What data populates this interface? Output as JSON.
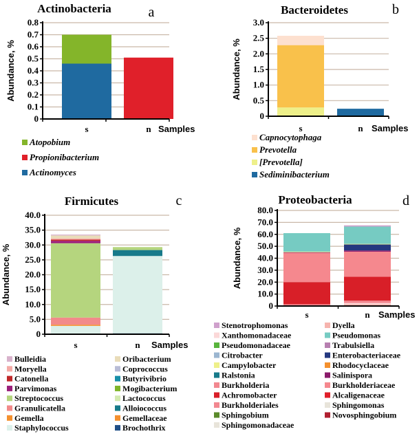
{
  "chart_data": [
    {
      "type": "bar",
      "stacked": true,
      "title": "Actinobacteria",
      "panel_letter": "a",
      "xlabel": "Samples",
      "ylabel": "Abundance, %",
      "ylim": [
        0,
        0.8
      ],
      "yticks": [
        "0",
        "0.1",
        "0.2",
        "0.3",
        "0.4",
        "0.5",
        "0.6",
        "0.7",
        "0.8"
      ],
      "grid": true,
      "categories": [
        "s",
        "n"
      ],
      "series": [
        {
          "name": "Actinomyces",
          "color": "#1f6aa0",
          "values": [
            0.46,
            0
          ]
        },
        {
          "name": "Propionibacterium",
          "color": "#e0202a",
          "values": [
            0,
            0.51
          ]
        },
        {
          "name": "Atopobium",
          "color": "#84b52a",
          "values": [
            0.24,
            0
          ]
        }
      ],
      "legend_order": [
        "Atopobium",
        "Propionibacterium",
        "Actinomyces"
      ],
      "legend_italic": true,
      "legend_placement": "bottom"
    },
    {
      "type": "bar",
      "stacked": true,
      "title": "Bacteroidetes",
      "panel_letter": "b",
      "xlabel": "Samples",
      "ylabel": "Abundance, %",
      "ylim": [
        0,
        3.0
      ],
      "yticks": [
        "0",
        "0.5",
        "1.0",
        "1.5",
        "2.0",
        "2.5",
        "3.0"
      ],
      "grid": true,
      "categories": [
        "s",
        "n"
      ],
      "series": [
        {
          "name": "Sediminibacterium",
          "color": "#1f6aa0",
          "values": [
            0,
            0.24
          ]
        },
        {
          "name": "[Prevotella]",
          "color": "#eef08a",
          "values": [
            0.28,
            0
          ]
        },
        {
          "name": "Prevotella",
          "color": "#f9c14b",
          "values": [
            2.0,
            0
          ]
        },
        {
          "name": "Capnocytophaga",
          "color": "#fde0cf",
          "values": [
            0.3,
            0
          ]
        }
      ],
      "legend_order": [
        "Capnocytophaga",
        "Prevotella",
        "[Prevotella]",
        "Sediminibacterium"
      ],
      "legend_italic": true,
      "legend_placement": "bottom"
    },
    {
      "type": "bar",
      "stacked": true,
      "title": "Firmicutes",
      "panel_letter": "c",
      "xlabel": "Samples",
      "ylabel": "Abundance, %",
      "ylim": [
        0,
        40
      ],
      "yticks": [
        "0",
        "5.0",
        "10.0",
        "15.0",
        "20.0",
        "25.0",
        "30.0",
        "35.0",
        "40.0"
      ],
      "grid": true,
      "categories": [
        "s",
        "n"
      ],
      "series": [
        {
          "name": "Brochothrix",
          "color": "#1f4e86",
          "values": [
            0,
            0.3
          ]
        },
        {
          "name": "Staphylococcus",
          "color": "#dcf0ea",
          "values": [
            2.8,
            26.0
          ]
        },
        {
          "name": "Gemellaceae",
          "color": "#f4902e",
          "values": [
            0,
            0
          ]
        },
        {
          "name": "Gemella",
          "color": "#f4902e",
          "values": [
            0.4,
            0
          ]
        },
        {
          "name": "Alloiococcus",
          "color": "#177a8a",
          "values": [
            0,
            2.0
          ]
        },
        {
          "name": "Granulicatella",
          "color": "#f28a8a",
          "values": [
            2.4,
            0
          ]
        },
        {
          "name": "Lactococcus",
          "color": "#d3eab0",
          "values": [
            0,
            0
          ]
        },
        {
          "name": "Streptococcus",
          "color": "#b5d57e",
          "values": [
            25.0,
            1.0
          ]
        },
        {
          "name": "Mogibacterium",
          "color": "#7fb52a",
          "values": [
            0,
            0
          ]
        },
        {
          "name": "Parvimonas",
          "color": "#9b1f7a",
          "values": [
            0.8,
            0
          ]
        },
        {
          "name": "Butyrivibrio",
          "color": "#178fa8",
          "values": [
            0,
            0
          ]
        },
        {
          "name": "Catonella",
          "color": "#c0282a",
          "values": [
            0.4,
            0
          ]
        },
        {
          "name": "Coprococcus",
          "color": "#b8bcd6",
          "values": [
            0,
            0
          ]
        },
        {
          "name": "Moryella",
          "color": "#f4aaa6",
          "values": [
            0.4,
            0
          ]
        },
        {
          "name": "Oribacterium",
          "color": "#e9dcb9",
          "values": [
            1.0,
            0
          ]
        },
        {
          "name": "Bulleidia",
          "color": "#d8b2cc",
          "values": [
            0.3,
            0
          ]
        }
      ],
      "legend_order": [
        "Bulleidia",
        "Moryella",
        "Catonella",
        "Parvimonas",
        "Streptococcus",
        "Granulicatella",
        "Gemella",
        "Staphylococcus",
        "Oribacterium",
        "Coprococcus",
        "Butyrivibrio",
        "Mogibacterium",
        "Lactococcus",
        "Alloiococcus",
        "Gemellaceae",
        "Brochothrix"
      ],
      "legend_italic": false,
      "legend_placement": "bottom"
    },
    {
      "type": "bar",
      "stacked": true,
      "title": "Proteobacteria",
      "panel_letter": "d",
      "xlabel": "Samples",
      "ylabel": "Abundance, %",
      "ylim": [
        0,
        80
      ],
      "yticks": [
        "0",
        "10.0",
        "20.0",
        "30.0",
        "40.0",
        "50.0",
        "60.0",
        "70.0",
        "80.0"
      ],
      "grid": true,
      "categories": [
        "s",
        "n"
      ],
      "series": [
        {
          "name": "Dyella",
          "color": "#f6b4ae",
          "values": [
            0.5,
            1.5
          ]
        },
        {
          "name": "Xanthomonadaceae",
          "color": "#fbd8d8",
          "values": [
            0,
            1.0
          ]
        },
        {
          "name": "Burkholderia",
          "color": "#f28890",
          "values": [
            1.0,
            2.0
          ]
        },
        {
          "name": "Achromobacter",
          "color": "#d81f28",
          "values": [
            18.5,
            20.0
          ]
        },
        {
          "name": "Burkholderiaceae",
          "color": "#f5888e",
          "values": [
            24.5,
            21.0
          ]
        },
        {
          "name": "Salinispora",
          "color": "#8a1a6a",
          "values": [
            0.5,
            1.0
          ]
        },
        {
          "name": "Enterobacteriaceae",
          "color": "#24387f",
          "values": [
            0,
            5.0
          ]
        },
        {
          "name": "Campylobacter",
          "color": "#eef08a",
          "values": [
            0.5,
            0.5
          ]
        },
        {
          "name": "Pseudomonas",
          "color": "#76cbc2",
          "values": [
            15.5,
            14.5
          ]
        },
        {
          "name": "Stenotrophomonas",
          "color": "#cfa0cc",
          "values": [
            0,
            1.0
          ]
        },
        {
          "name": "Pseudomonadaceae",
          "color": "#58b43c",
          "values": [
            0,
            0
          ]
        },
        {
          "name": "Trabulsiella",
          "color": "#b77fb0",
          "values": [
            0,
            0
          ]
        },
        {
          "name": "Citrobacter",
          "color": "#9bb6d0",
          "values": [
            0,
            0
          ]
        },
        {
          "name": "Rhodocyclaceae",
          "color": "#f4902e",
          "values": [
            0,
            0
          ]
        },
        {
          "name": "Ralstonia",
          "color": "#177a8a",
          "values": [
            0,
            0
          ]
        },
        {
          "name": "Burkholderiales",
          "color": "#f28890",
          "values": [
            0,
            0
          ]
        },
        {
          "name": "Alcaligenaceae",
          "color": "#e0202a",
          "values": [
            0,
            0
          ]
        },
        {
          "name": "Sphingobium",
          "color": "#5a8a2a",
          "values": [
            0,
            0
          ]
        },
        {
          "name": "Sphingomonas",
          "color": "#e8e4da",
          "values": [
            0,
            0
          ]
        },
        {
          "name": "Novosphingobium",
          "color": "#b01f30",
          "values": [
            0,
            0
          ]
        },
        {
          "name": "Sphingomonadaceae",
          "color": "#e8e4da",
          "values": [
            0,
            0
          ]
        }
      ],
      "legend_order": [
        "Stenotrophomonas",
        "Xanthomonadaceae",
        "Pseudomonadaceae",
        "Citrobacter",
        "Campylobacter",
        "Ralstonia",
        "Burkholderia",
        "Achromobacter",
        "Burkholderiales",
        "Sphingobium",
        "Sphingomonadaceae",
        "Dyella",
        "Pseudomonas",
        "Trabulsiella",
        "Enterobacteriaceae",
        "Rhodocyclaceae",
        "Salinispora",
        "Burkholderiaceae",
        "Alcaligenaceae",
        "Sphingomonas",
        "Novosphingobium"
      ],
      "legend_italic": false,
      "legend_placement": "bottom"
    }
  ]
}
